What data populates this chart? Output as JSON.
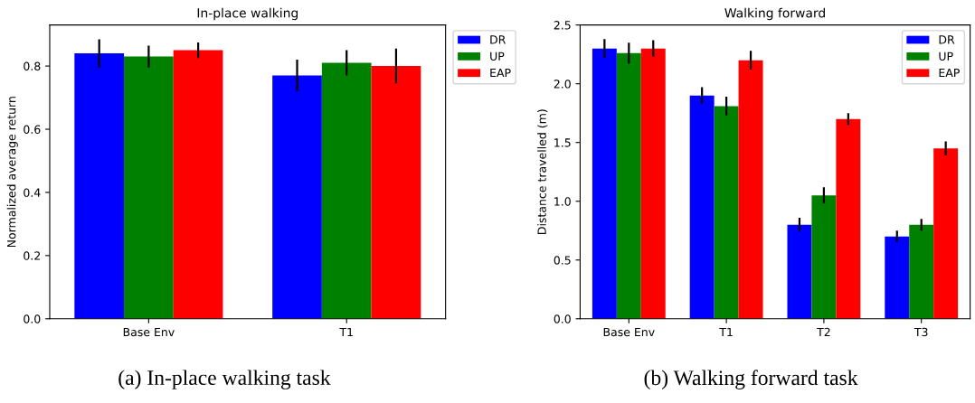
{
  "chart_data": [
    {
      "type": "bar",
      "title": "In-place walking",
      "ylabel": "Normalized average return",
      "categories": [
        "Base Env",
        "T1"
      ],
      "series": [
        {
          "name": "DR",
          "color": "#0000ff",
          "values": [
            0.84,
            0.77
          ],
          "errors": [
            0.045,
            0.05
          ]
        },
        {
          "name": "UP",
          "color": "#008000",
          "values": [
            0.83,
            0.81
          ],
          "errors": [
            0.035,
            0.04
          ]
        },
        {
          "name": "EAP",
          "color": "#ff0000",
          "values": [
            0.85,
            0.8
          ],
          "errors": [
            0.025,
            0.055
          ]
        }
      ],
      "ylim": [
        0,
        0.93
      ],
      "yticks": [
        {
          "value": 0,
          "label": "0.0"
        },
        {
          "value": 0.2,
          "label": "0.2"
        },
        {
          "value": 0.4,
          "label": "0.4"
        },
        {
          "value": 0.6,
          "label": "0.6"
        },
        {
          "value": 0.8,
          "label": "0.8"
        }
      ],
      "legend": "top right",
      "annotations": [
        "(a) In-place walking task"
      ]
    },
    {
      "type": "bar",
      "title": "Walking forward",
      "ylabel": "Distance travelled (m)",
      "categories": [
        "Base Env",
        "T1",
        "T2",
        "T3"
      ],
      "series": [
        {
          "name": "DR",
          "color": "#0000ff",
          "values": [
            2.3,
            1.9,
            0.8,
            0.7
          ],
          "errors": [
            0.08,
            0.07,
            0.06,
            0.05
          ]
        },
        {
          "name": "UP",
          "color": "#008000",
          "values": [
            2.26,
            1.81,
            1.05,
            0.8
          ],
          "errors": [
            0.09,
            0.08,
            0.07,
            0.05
          ]
        },
        {
          "name": "EAP",
          "color": "#ff0000",
          "values": [
            2.3,
            2.2,
            1.7,
            1.45
          ],
          "errors": [
            0.07,
            0.08,
            0.05,
            0.06
          ]
        }
      ],
      "ylim": [
        0,
        2.5
      ],
      "yticks": [
        {
          "value": 0,
          "label": "0.0"
        },
        {
          "value": 0.5,
          "label": "0.5"
        },
        {
          "value": 1.0,
          "label": "1.0"
        },
        {
          "value": 1.5,
          "label": "1.5"
        },
        {
          "value": 2.0,
          "label": "2.0"
        },
        {
          "value": 2.5,
          "label": "2.5"
        }
      ],
      "legend": "top right",
      "annotations": [
        "(b) Walking forward task"
      ]
    }
  ]
}
